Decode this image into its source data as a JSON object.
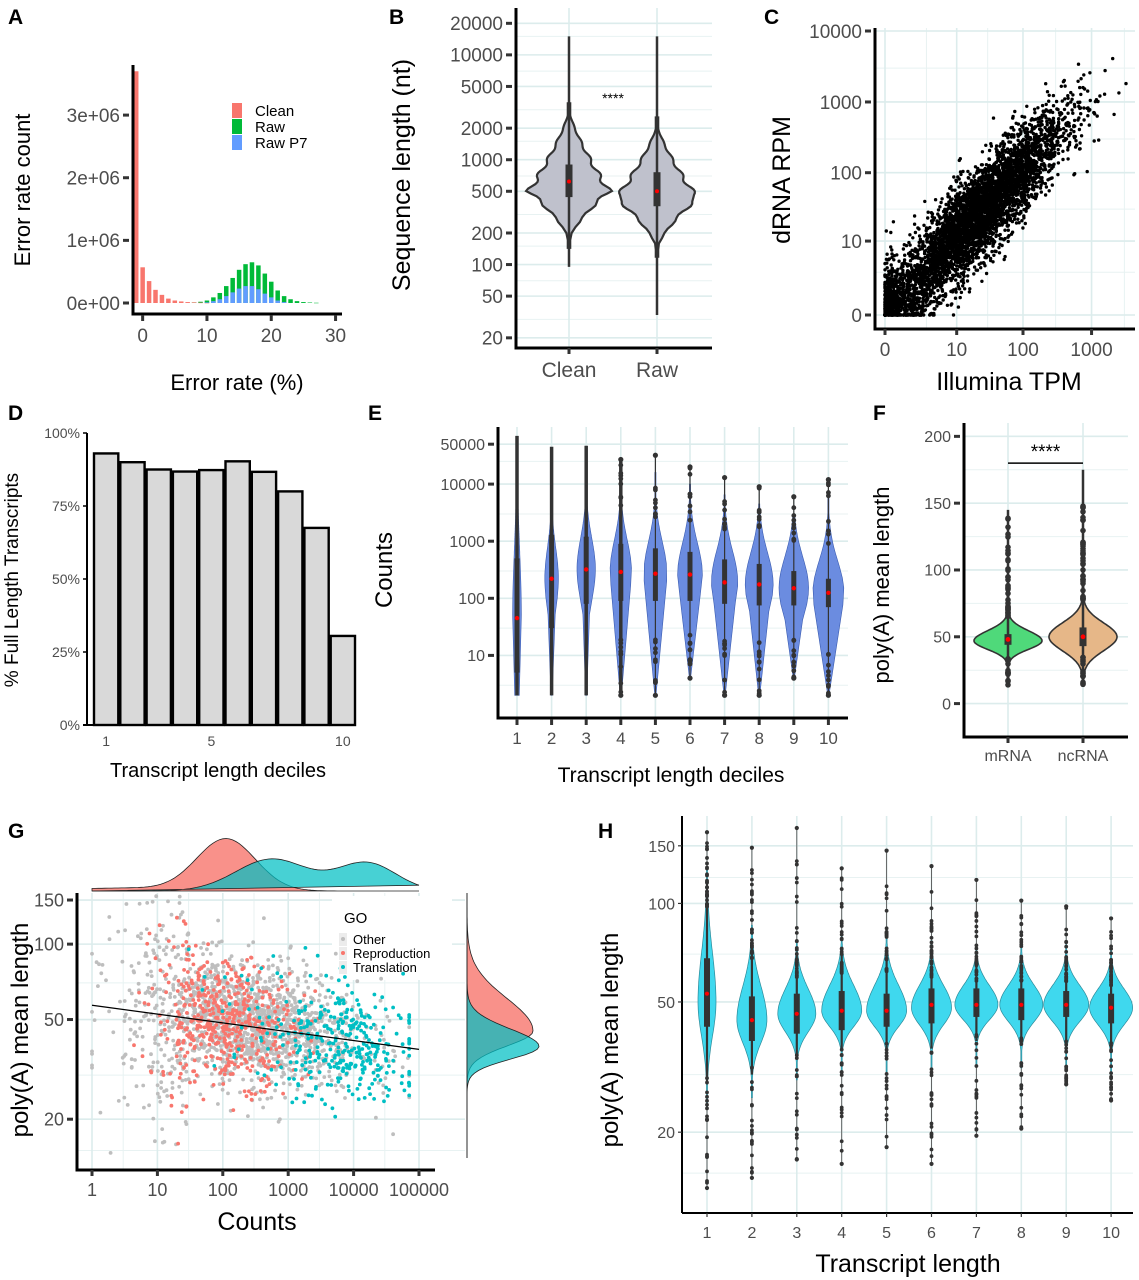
{
  "figure": {
    "panel_labels": [
      "A",
      "B",
      "C",
      "D",
      "E",
      "F",
      "G",
      "H"
    ]
  },
  "chart_data": [
    {
      "panel": "A",
      "type": "bar",
      "subtype": "histogram",
      "title": "",
      "xlabel": "Error rate (%)",
      "ylabel": "Error rate count",
      "xlim": [
        -1.5,
        31
      ],
      "ylim": [
        0,
        3800000
      ],
      "xticks": [
        0,
        10,
        20,
        30
      ],
      "xtick_labels": [
        "0",
        "10",
        "20",
        "30"
      ],
      "yticks": [
        0,
        1000000,
        2000000,
        3000000
      ],
      "ytick_labels": [
        "0e+00",
        "1e+06",
        "2e+06",
        "3e+06"
      ],
      "legend": {
        "position": "top-right",
        "entries": [
          {
            "name": "Clean",
            "color": "#f8766d"
          },
          {
            "name": "Raw",
            "color": "#00ba38"
          },
          {
            "name": "Raw P7",
            "color": "#619cff"
          }
        ]
      },
      "series": [
        {
          "name": "Clean",
          "color": "#f8766d",
          "x": [
            -1,
            0,
            1,
            2,
            3,
            4,
            5,
            6,
            7,
            8,
            9,
            10
          ],
          "values": [
            3700000,
            570000,
            350000,
            210000,
            130000,
            70000,
            40000,
            25000,
            15000,
            10000,
            6000,
            3000
          ]
        },
        {
          "name": "Raw",
          "color": "#00ba38",
          "x": [
            8,
            9,
            10,
            11,
            12,
            13,
            14,
            15,
            16,
            17,
            18,
            19,
            20,
            21,
            22,
            23,
            24,
            25,
            26,
            27
          ],
          "values": [
            10000,
            20000,
            40000,
            90000,
            160000,
            270000,
            400000,
            530000,
            620000,
            650000,
            600000,
            470000,
            340000,
            200000,
            110000,
            60000,
            30000,
            15000,
            8000,
            4000
          ]
        },
        {
          "name": "Raw P7",
          "color": "#619cff",
          "x": [
            10,
            11,
            12,
            13,
            14,
            15,
            16,
            17,
            18,
            19,
            20,
            21,
            22
          ],
          "values": [
            10000,
            30000,
            60000,
            110000,
            170000,
            230000,
            270000,
            270000,
            220000,
            150000,
            90000,
            40000,
            15000
          ]
        }
      ]
    },
    {
      "panel": "B",
      "type": "violin",
      "title": "",
      "xlabel": "",
      "ylabel": "Sequence length (nt)",
      "yscale": "log10",
      "ylim": [
        16,
        28000
      ],
      "yticks": [
        20,
        50,
        100,
        200,
        500,
        1000,
        2000,
        5000,
        10000,
        20000
      ],
      "ytick_labels": [
        "20",
        "50",
        "100",
        "200",
        "500",
        "1000",
        "2000",
        "5000",
        "10000",
        "20000"
      ],
      "categories": [
        "Clean",
        "Raw"
      ],
      "annotation": "****",
      "fill": "#bfc1cc",
      "groups": [
        {
          "name": "Clean",
          "min": 95,
          "max": 15000,
          "q1": 440,
          "median": 620,
          "q3": 900,
          "mean": 620,
          "mode": 500,
          "tail_low": 170,
          "tail_high": 3000
        },
        {
          "name": "Raw",
          "min": 33,
          "max": 15000,
          "q1": 360,
          "median": 500,
          "q3": 760,
          "mean": 500,
          "mode": 430,
          "tail_low": 140,
          "tail_high": 2200
        }
      ]
    },
    {
      "panel": "C",
      "type": "scatter",
      "title": "",
      "xlabel": "Illumina TPM",
      "ylabel": "dRNA RPM",
      "xscale": "log10(x+1)",
      "yscale": "log10(y+1)",
      "xlim": [
        0,
        3500
      ],
      "ylim": [
        0,
        10000
      ],
      "xticks": [
        0,
        10,
        100,
        1000
      ],
      "xtick_labels": [
        "0",
        "10",
        "100",
        "1000"
      ],
      "yticks": [
        0,
        10,
        100,
        1000,
        10000
      ],
      "ytick_labels": [
        "0",
        "10",
        "100",
        "1000",
        "10000"
      ],
      "color": "#000000",
      "relationship": "positive correlation, approx y ≈ x on log scale, ~7000 points",
      "n_points_approx": 7000
    },
    {
      "panel": "D",
      "type": "bar",
      "title": "",
      "xlabel": "Transcript length deciles",
      "ylabel": "% Full Length Transcripts",
      "categories": [
        "1",
        "2",
        "3",
        "4",
        "5",
        "6",
        "7",
        "8",
        "9",
        "10"
      ],
      "values": [
        93,
        90,
        87.5,
        86.8,
        87.3,
        90.3,
        86.7,
        80,
        67.5,
        30.5
      ],
      "ylim": [
        0,
        100
      ],
      "yticks": [
        0,
        25,
        50,
        75,
        100
      ],
      "ytick_labels": [
        "0%",
        "25%",
        "50%",
        "75%",
        "100%"
      ],
      "xtick_labels_shown": [
        "1",
        "5",
        "10"
      ],
      "fill": "#d9d9d9"
    },
    {
      "panel": "E",
      "type": "violin",
      "title": "",
      "xlabel": "Transcript length deciles",
      "ylabel": "Counts",
      "yscale": "log10",
      "ylim": [
        1.3,
        100000
      ],
      "yticks": [
        10,
        100,
        1000,
        10000,
        50000
      ],
      "ytick_labels": [
        "10",
        "100",
        "1000",
        "10000",
        "50000"
      ],
      "categories": [
        "1",
        "2",
        "3",
        "4",
        "5",
        "6",
        "7",
        "8",
        "9",
        "10"
      ],
      "fill": "#6b8ce0",
      "groups": [
        {
          "name": "1",
          "min": 2,
          "max": 70000,
          "q1": 5,
          "median": 45,
          "q3": 500,
          "mean": 45,
          "width": 0.15
        },
        {
          "name": "2",
          "min": 2,
          "max": 45000,
          "q1": 30,
          "median": 220,
          "q3": 1300,
          "mean": 220,
          "width": 0.3
        },
        {
          "name": "3",
          "min": 2,
          "max": 47000,
          "q1": 80,
          "median": 320,
          "q3": 1200,
          "mean": 320,
          "width": 0.45
        },
        {
          "name": "4",
          "min": 2,
          "max": 27000,
          "q1": 90,
          "median": 290,
          "q3": 900,
          "mean": 290,
          "width": 0.55
        },
        {
          "name": "5",
          "min": 2,
          "max": 32000,
          "q1": 90,
          "median": 270,
          "q3": 750,
          "mean": 270,
          "width": 0.6
        },
        {
          "name": "6",
          "min": 4,
          "max": 20000,
          "q1": 90,
          "median": 260,
          "q3": 650,
          "mean": 260,
          "width": 0.65
        },
        {
          "name": "7",
          "min": 2,
          "max": 13000,
          "q1": 80,
          "median": 190,
          "q3": 480,
          "mean": 190,
          "width": 0.7
        },
        {
          "name": "8",
          "min": 2,
          "max": 9000,
          "q1": 75,
          "median": 175,
          "q3": 400,
          "mean": 175,
          "width": 0.75
        },
        {
          "name": "9",
          "min": 4,
          "max": 6000,
          "q1": 75,
          "median": 150,
          "q3": 300,
          "mean": 150,
          "width": 0.8
        },
        {
          "name": "10",
          "min": 2,
          "max": 12000,
          "q1": 70,
          "median": 125,
          "q3": 220,
          "mean": 125,
          "width": 0.85
        }
      ]
    },
    {
      "panel": "F",
      "type": "violin",
      "title": "",
      "xlabel": "",
      "ylabel": "poly(A) mean length",
      "ylim": [
        -25,
        210
      ],
      "yticks": [
        0,
        50,
        100,
        150,
        200
      ],
      "ytick_labels": [
        "0",
        "50",
        "100",
        "150",
        "200"
      ],
      "categories": [
        "mRNA",
        "ncRNA"
      ],
      "annotation": "****",
      "bracket_y": 180,
      "groups": [
        {
          "name": "mRNA",
          "color": "#4fd97a",
          "min": 13,
          "max": 145,
          "q1": 44,
          "median": 48,
          "q3": 52,
          "mean": 48,
          "mode": 47,
          "body_low": 33,
          "body_high": 65
        },
        {
          "name": "ncRNA",
          "color": "#e6b788",
          "min": 13,
          "max": 175,
          "q1": 43,
          "median": 50,
          "q3": 57,
          "mean": 50,
          "mode": 50,
          "body_low": 27,
          "body_high": 75
        }
      ]
    },
    {
      "panel": "G",
      "type": "scatter",
      "title": "",
      "xlabel": "Counts",
      "ylabel": "poly(A) mean length",
      "xscale": "log10",
      "yscale": "log10",
      "xlim": [
        0.6,
        180000
      ],
      "ylim": [
        14,
        160
      ],
      "xticks": [
        1,
        10,
        100,
        1000,
        10000,
        100000
      ],
      "xtick_labels": [
        "1",
        "10",
        "100",
        "1000",
        "10000",
        "100000"
      ],
      "yticks": [
        20,
        50,
        100,
        150
      ],
      "ytick_labels": [
        "20",
        "50",
        "100",
        "150"
      ],
      "legend": {
        "title": "GO",
        "position": "top-right",
        "entries": [
          {
            "name": "Other",
            "color": "#bebebe"
          },
          {
            "name": "Reproduction",
            "color": "#f8766d"
          },
          {
            "name": "Translation",
            "color": "#00bfc4"
          }
        ]
      },
      "trend_line": {
        "x": [
          1,
          100000
        ],
        "y": [
          57,
          38
        ]
      },
      "series": [
        {
          "name": "Other",
          "color": "#bebebe",
          "center_log_x": 2.3,
          "spread_log_x": 0.9,
          "center_y": 50,
          "n_approx": 1500
        },
        {
          "name": "Reproduction",
          "color": "#f8766d",
          "center_log_x": 2.05,
          "spread_log_x": 0.55,
          "center_y": 52,
          "n_approx": 500
        },
        {
          "name": "Translation",
          "color": "#00bfc4",
          "center_log_x": 3.6,
          "spread_log_x": 0.8,
          "center_y": 41,
          "n_approx": 350
        }
      ],
      "marginal_density_x": [
        {
          "name": "Reproduction",
          "color": "#f8766d",
          "peaks_log_x": [
            2.05
          ]
        },
        {
          "name": "Translation",
          "color": "#00bfc4",
          "peaks_log_x": [
            2.7,
            4.2
          ]
        }
      ],
      "marginal_density_y": [
        {
          "name": "Reproduction",
          "color": "#f8766d",
          "peak_y": 45
        },
        {
          "name": "Translation",
          "color": "#00bfc4",
          "peak_y": 39
        }
      ]
    },
    {
      "panel": "H",
      "type": "violin",
      "title": "",
      "xlabel": "Transcript length",
      "ylabel": "poly(A) mean length",
      "yscale": "log10",
      "ylim": [
        12.5,
        185
      ],
      "yticks": [
        20,
        50,
        100,
        150
      ],
      "ytick_labels": [
        "20",
        "50",
        "100",
        "150"
      ],
      "categories": [
        "1",
        "2",
        "3",
        "4",
        "5",
        "6",
        "7",
        "8",
        "9",
        "10"
      ],
      "fill": "#3fd8ee",
      "groups": [
        {
          "name": "1",
          "min": 13.5,
          "max": 165,
          "q1": 42,
          "median": 53,
          "q3": 68,
          "mean": 53,
          "body_low": 28,
          "body_high": 115,
          "wmax": 0.18,
          "mode": 50
        },
        {
          "name": "2",
          "min": 14.5,
          "max": 148,
          "q1": 38,
          "median": 44,
          "q3": 52,
          "mean": 44,
          "body_low": 30,
          "body_high": 78,
          "wmax": 0.3,
          "mode": 44
        },
        {
          "name": "3",
          "min": 16.5,
          "max": 170,
          "q1": 40,
          "median": 46,
          "q3": 53,
          "mean": 46,
          "body_low": 34,
          "body_high": 70,
          "wmax": 0.38,
          "mode": 46
        },
        {
          "name": "4",
          "min": 16,
          "max": 128,
          "q1": 41,
          "median": 47,
          "q3": 54,
          "mean": 47,
          "body_low": 36,
          "body_high": 72,
          "wmax": 0.4,
          "mode": 47
        },
        {
          "name": "5",
          "min": 18,
          "max": 145,
          "q1": 42,
          "median": 47,
          "q3": 53,
          "mean": 47,
          "body_low": 36,
          "body_high": 72,
          "wmax": 0.4,
          "mode": 47
        },
        {
          "name": "6",
          "min": 16,
          "max": 130,
          "q1": 43,
          "median": 49,
          "q3": 55,
          "mean": 49,
          "body_low": 36,
          "body_high": 70,
          "wmax": 0.4,
          "mode": 48
        },
        {
          "name": "7",
          "min": 19.5,
          "max": 118,
          "q1": 45,
          "median": 49,
          "q3": 55,
          "mean": 49,
          "body_low": 38,
          "body_high": 68,
          "wmax": 0.43,
          "mode": 49
        },
        {
          "name": "8",
          "min": 20.5,
          "max": 102,
          "q1": 44,
          "median": 49,
          "q3": 55,
          "mean": 49,
          "body_low": 37,
          "body_high": 68,
          "wmax": 0.43,
          "mode": 49
        },
        {
          "name": "9",
          "min": 28,
          "max": 98,
          "q1": 45,
          "median": 49,
          "q3": 54,
          "mean": 49,
          "body_low": 37,
          "body_high": 68,
          "wmax": 0.45,
          "mode": 49
        },
        {
          "name": "10",
          "min": 25,
          "max": 90,
          "q1": 43,
          "median": 48,
          "q3": 53,
          "mean": 48,
          "body_low": 36,
          "body_high": 66,
          "wmax": 0.43,
          "mode": 48
        }
      ]
    }
  ]
}
